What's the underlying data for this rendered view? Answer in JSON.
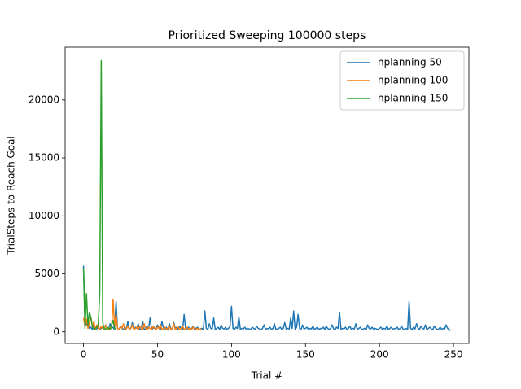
{
  "chart_data": {
    "type": "line",
    "title": "Prioritized Sweeping 100000 steps",
    "x_label": "Trial #",
    "y_label": "TrialSteps to Reach Goal",
    "xlim": [
      -12.4,
      260.4
    ],
    "ylim": [
      -1000,
      24550
    ],
    "xticks": [
      0,
      50,
      100,
      150,
      200,
      250
    ],
    "yticks": [
      0,
      5000,
      10000,
      15000,
      20000
    ],
    "legend": "upper right",
    "series": [
      {
        "name": "nplanning 50",
        "color": "#1f77b4",
        "x": [
          0,
          1,
          2,
          3,
          4,
          5,
          6,
          7,
          8,
          9,
          10,
          11,
          12,
          13,
          14,
          15,
          16,
          17,
          18,
          19,
          20,
          21,
          22,
          23,
          24,
          25,
          26,
          27,
          28,
          29,
          30,
          31,
          32,
          33,
          34,
          35,
          36,
          37,
          38,
          39,
          40,
          41,
          42,
          43,
          44,
          45,
          46,
          47,
          48,
          49,
          50,
          51,
          52,
          53,
          54,
          55,
          56,
          57,
          58,
          59,
          60,
          61,
          62,
          63,
          64,
          65,
          66,
          67,
          68,
          69,
          70,
          71,
          72,
          73,
          74,
          75,
          76,
          77,
          78,
          79,
          80,
          81,
          82,
          83,
          84,
          85,
          86,
          87,
          88,
          89,
          90,
          91,
          92,
          93,
          94,
          95,
          96,
          97,
          98,
          99,
          100,
          101,
          102,
          103,
          104,
          105,
          106,
          107,
          108,
          109,
          110,
          111,
          112,
          113,
          114,
          115,
          116,
          117,
          118,
          119,
          120,
          121,
          122,
          123,
          124,
          125,
          126,
          127,
          128,
          129,
          130,
          131,
          132,
          133,
          134,
          135,
          136,
          137,
          138,
          139,
          140,
          141,
          142,
          143,
          144,
          145,
          146,
          147,
          148,
          149,
          150,
          151,
          152,
          153,
          154,
          155,
          156,
          157,
          158,
          159,
          160,
          161,
          162,
          163,
          164,
          165,
          166,
          167,
          168,
          169,
          170,
          171,
          172,
          173,
          174,
          175,
          176,
          177,
          178,
          179,
          180,
          181,
          182,
          183,
          184,
          185,
          186,
          187,
          188,
          189,
          190,
          191,
          192,
          193,
          194,
          195,
          196,
          197,
          198,
          199,
          200,
          201,
          202,
          203,
          204,
          205,
          206,
          207,
          208,
          209,
          210,
          211,
          212,
          213,
          214,
          215,
          216,
          217,
          218,
          219,
          220,
          221,
          222,
          223,
          224,
          225,
          226,
          227,
          228,
          229,
          230,
          231,
          232,
          233,
          234,
          235,
          236,
          237,
          238,
          239,
          240,
          241,
          242,
          243,
          244,
          245,
          246,
          247,
          248
        ],
        "values": [
          5700,
          1200,
          600,
          900,
          300,
          400,
          200,
          700,
          300,
          250,
          500,
          200,
          300,
          400,
          200,
          600,
          300,
          250,
          700,
          300,
          400,
          200,
          2600,
          300,
          200,
          500,
          300,
          200,
          400,
          250,
          900,
          200,
          300,
          800,
          200,
          400,
          300,
          700,
          200,
          300,
          900,
          200,
          250,
          500,
          300,
          1200,
          200,
          300,
          400,
          200,
          600,
          300,
          200,
          900,
          300,
          250,
          400,
          200,
          700,
          300,
          200,
          800,
          300,
          400,
          200,
          500,
          300,
          200,
          1500,
          300,
          200,
          400,
          300,
          250,
          500,
          200,
          300,
          400,
          200,
          250,
          300,
          200,
          1800,
          300,
          200,
          700,
          300,
          250,
          1200,
          200,
          300,
          400,
          200,
          600,
          300,
          250,
          400,
          200,
          300,
          500,
          2200,
          300,
          200,
          400,
          300,
          1300,
          200,
          300,
          250,
          400,
          200,
          300,
          250,
          200,
          400,
          300,
          200,
          500,
          300,
          250,
          200,
          300,
          600,
          200,
          300,
          250,
          400,
          200,
          300,
          700,
          200,
          250,
          300,
          400,
          200,
          300,
          800,
          200,
          300,
          250,
          1200,
          300,
          1800,
          200,
          400,
          1500,
          300,
          200,
          600,
          250,
          300,
          400,
          200,
          300,
          250,
          500,
          200,
          300,
          400,
          200,
          300,
          250,
          400,
          200,
          500,
          300,
          200,
          300,
          600,
          250,
          200,
          400,
          300,
          1700,
          200,
          300,
          250,
          400,
          200,
          300,
          500,
          200,
          300,
          250,
          700,
          200,
          300,
          400,
          200,
          250,
          300,
          200,
          600,
          300,
          250,
          400,
          200,
          300,
          250,
          200,
          300,
          400,
          200,
          300,
          250,
          500,
          200,
          300,
          400,
          200,
          300,
          250,
          400,
          200,
          300,
          500,
          200,
          250,
          300,
          200,
          2600,
          300,
          200,
          400,
          250,
          700,
          300,
          200,
          500,
          300,
          250,
          600,
          200,
          300,
          400,
          250,
          200,
          500,
          300,
          200,
          250,
          400,
          200,
          300,
          250,
          600,
          300,
          200,
          100
        ]
      },
      {
        "name": "nplanning 100",
        "color": "#ff7f0e",
        "x": [
          0,
          1,
          2,
          3,
          4,
          5,
          6,
          7,
          8,
          9,
          10,
          11,
          12,
          13,
          14,
          15,
          16,
          17,
          18,
          19,
          20,
          21,
          22,
          23,
          24,
          25,
          26,
          27,
          28,
          29,
          30,
          31,
          32,
          33,
          34,
          35,
          36,
          37,
          38,
          39,
          40,
          41,
          42,
          43,
          44,
          45,
          46,
          47,
          48,
          49,
          50,
          51,
          52,
          53,
          54,
          55,
          56,
          57,
          58,
          59,
          60,
          61,
          62,
          63,
          64,
          65,
          66,
          67,
          68,
          69,
          70,
          71,
          72,
          73,
          74,
          75,
          76,
          77,
          78,
          79,
          80
        ],
        "values": [
          1200,
          500,
          1100,
          300,
          800,
          1300,
          400,
          900,
          200,
          600,
          300,
          200,
          500,
          300,
          200,
          600,
          300,
          200,
          400,
          300,
          2800,
          500,
          1500,
          300,
          200,
          400,
          300,
          700,
          200,
          300,
          500,
          200,
          300,
          600,
          200,
          300,
          400,
          200,
          500,
          300,
          200,
          700,
          300,
          200,
          400,
          300,
          200,
          500,
          300,
          200,
          400,
          300,
          600,
          200,
          300,
          400,
          200,
          300,
          500,
          200,
          300,
          700,
          200,
          300,
          400,
          200,
          300,
          500,
          200,
          300,
          400,
          200,
          300,
          200,
          400,
          300,
          200,
          300,
          200,
          250,
          150
        ]
      },
      {
        "name": "nplanning 150",
        "color": "#2ca02c",
        "x": [
          0,
          1,
          2,
          3,
          4,
          5,
          6,
          7,
          8,
          9,
          10,
          11,
          12,
          13,
          14,
          15,
          16,
          17,
          18,
          19,
          20,
          21,
          22
        ],
        "values": [
          5500,
          300,
          3300,
          600,
          1700,
          1200,
          500,
          200,
          300,
          400,
          600,
          3500,
          23400,
          800,
          300,
          200,
          400,
          300,
          200,
          600,
          1000,
          300,
          200
        ]
      }
    ]
  }
}
